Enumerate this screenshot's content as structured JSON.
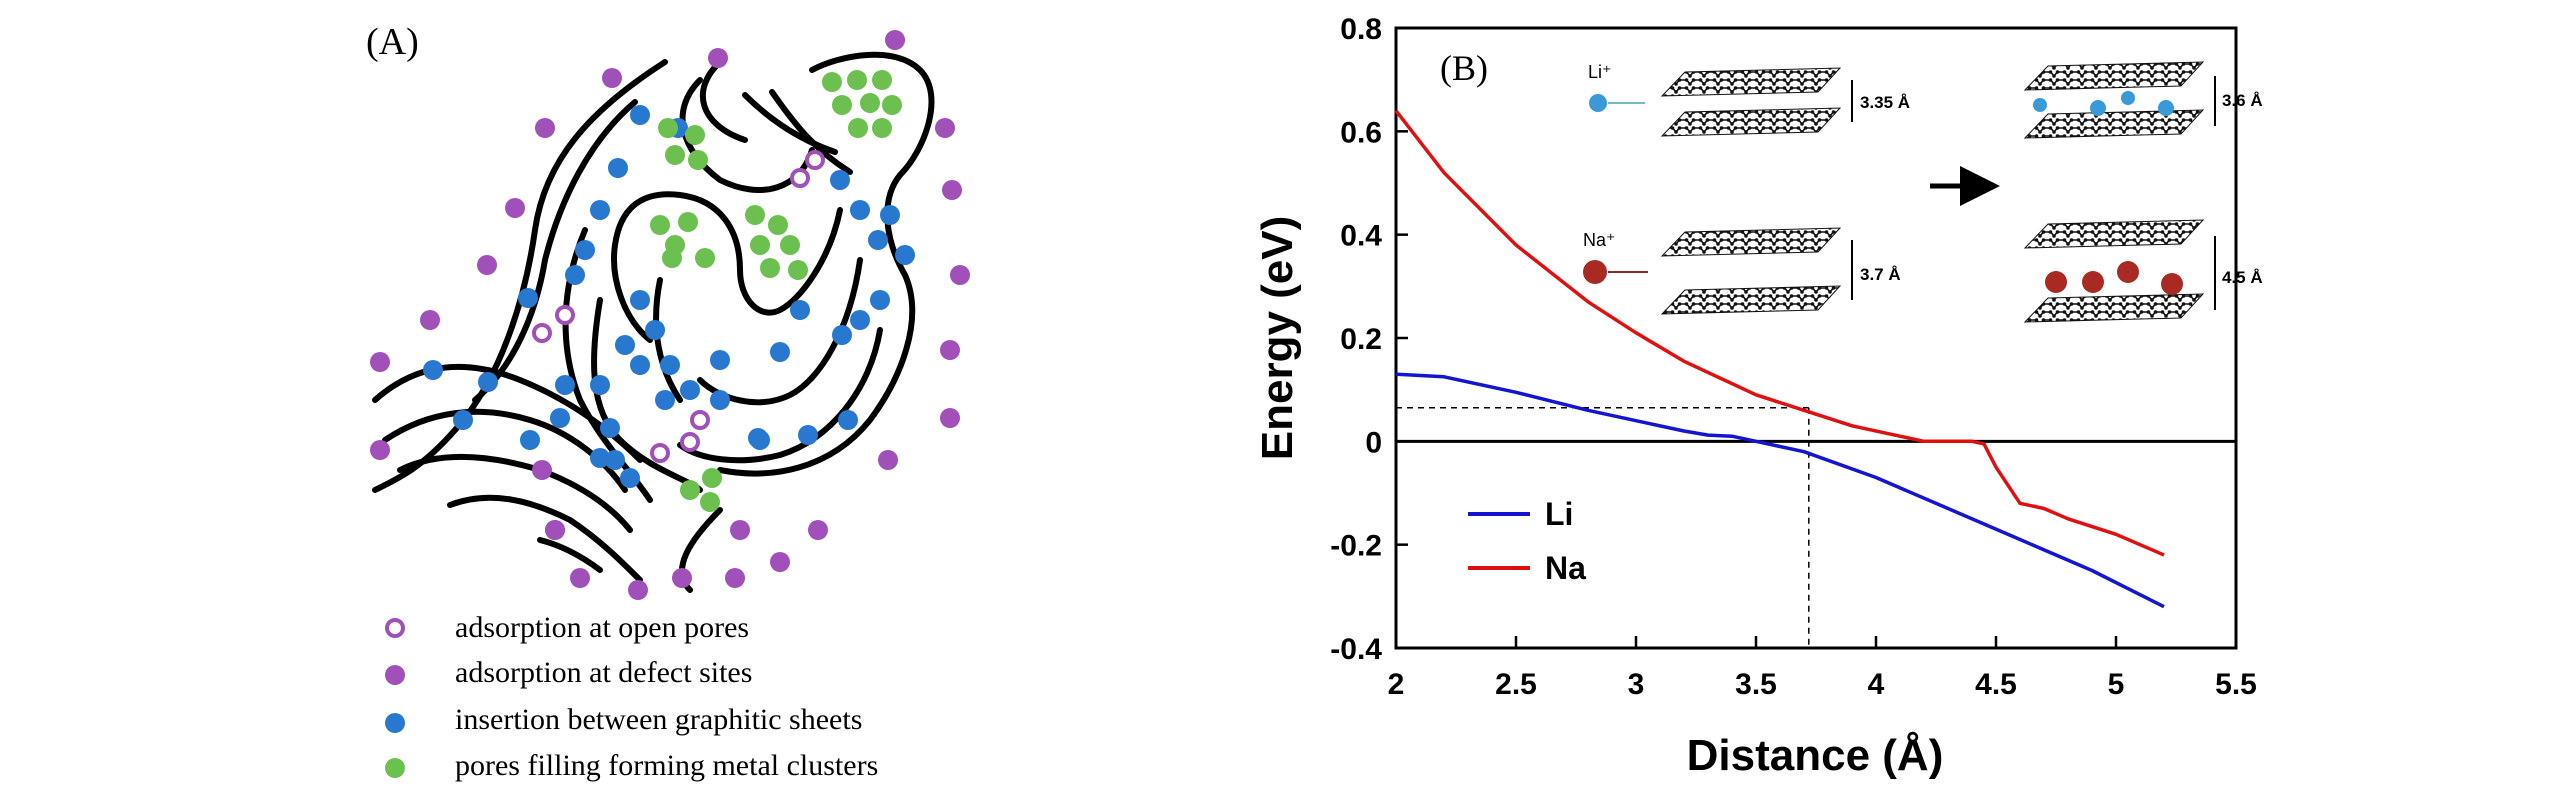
{
  "panel_a": {
    "label": "(A)",
    "legend": [
      {
        "marker": "ring",
        "color": "#a050b8",
        "text": "adsorption at open pores"
      },
      {
        "marker": "dot",
        "color": "#a050b8",
        "text": "adsorption at defect sites"
      },
      {
        "marker": "dot",
        "color": "#2878d0",
        "text": "insertion between graphitic sheets"
      },
      {
        "marker": "dot",
        "color": "#6cc050",
        "text": "pores filling forming metal clusters"
      }
    ]
  },
  "panel_b": {
    "label": "(B)",
    "inset": {
      "li_label": "Li⁺",
      "na_label": "Na⁺",
      "li_before_spacing": "3.35 Å",
      "li_after_spacing": "3.6 Å",
      "na_before_spacing": "3.7 Å",
      "na_after_spacing": "4.5 Å",
      "li_color": "#3a9ad8",
      "na_color": "#a82a22"
    }
  },
  "chart_data": {
    "type": "line",
    "title": "",
    "xlabel": "Distance (Å)",
    "ylabel": "Energy (eV)",
    "xlim": [
      2,
      5.5
    ],
    "ylim": [
      -0.4,
      0.8
    ],
    "xticks": [
      "2",
      "2.5",
      "3",
      "3.5",
      "4",
      "4.5",
      "5",
      "5.5"
    ],
    "yticks": [
      "0.8",
      "0.6",
      "0.4",
      "0.2",
      "0",
      "-0.2",
      "-0.4"
    ],
    "legend_position": "bottom-left",
    "series": [
      {
        "name": "Li",
        "color": "#1414d2",
        "x": [
          2.0,
          2.2,
          2.5,
          2.8,
          3.0,
          3.2,
          3.3,
          3.4,
          3.5,
          3.7,
          4.0,
          4.3,
          4.6,
          4.9,
          5.2
        ],
        "y": [
          0.13,
          0.125,
          0.095,
          0.06,
          0.04,
          0.02,
          0.012,
          0.01,
          0.0,
          -0.02,
          -0.07,
          -0.13,
          -0.19,
          -0.25,
          -0.32
        ]
      },
      {
        "name": "Na",
        "color": "#e01010",
        "x": [
          2.0,
          2.2,
          2.5,
          2.8,
          3.0,
          3.2,
          3.5,
          3.7,
          3.9,
          4.1,
          4.2,
          4.3,
          4.4,
          4.45,
          4.5,
          4.6,
          4.7,
          4.8,
          5.0,
          5.2
        ],
        "y": [
          0.64,
          0.52,
          0.38,
          0.27,
          0.21,
          0.155,
          0.09,
          0.06,
          0.03,
          0.01,
          0.0,
          0.0,
          0.0,
          -0.005,
          -0.05,
          -0.12,
          -0.13,
          -0.15,
          -0.18,
          -0.22
        ]
      }
    ],
    "reference_lines": {
      "h_zero": 0,
      "dashed_y": 0.065,
      "dashed_x": 3.72
    }
  }
}
